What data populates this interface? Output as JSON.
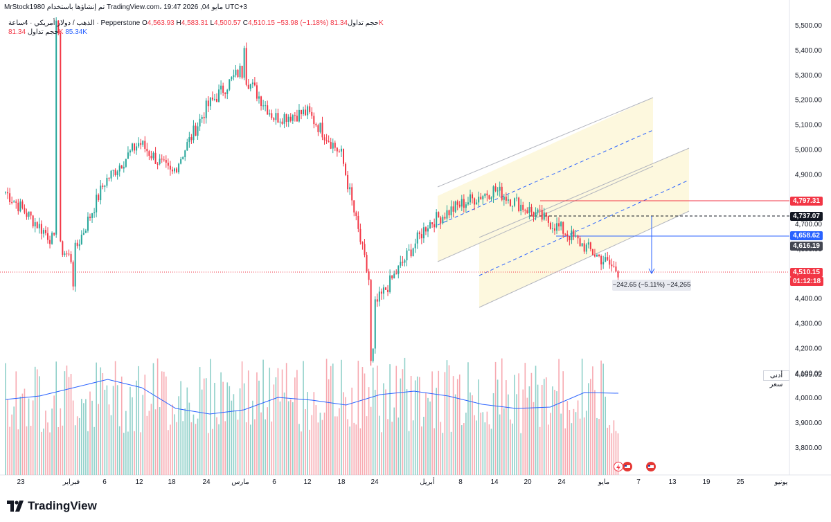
{
  "header": {
    "text": "MrStock1980 تم إنشاؤها باستخدام TradingView.com، 19:47 2026 ,04 مايو UTC+3"
  },
  "legend": {
    "instrument": "الذهب / دولار أمريكي · 4ساعة · Pepperstone",
    "open_label": "O",
    "open": "4,563.93",
    "high_label": "H",
    "high": "4,583.31",
    "low_label": "L",
    "low": "4,500.57",
    "close_label": "C",
    "close": "4,510.15",
    "change": "−53.98 (−1.18%)",
    "volume_label": "حجم تداول",
    "volume": "81.34K",
    "volume2_label": "حجم تداول",
    "volume2_a": "81.34K",
    "volume2_b": "85.34K"
  },
  "y_axis_ticks": [
    "5,500.00",
    "5,400.00",
    "5,300.00",
    "5,200.00",
    "5,100.00",
    "5,000.00",
    "4,900.00",
    "4,800.00",
    "4,700.00",
    "4,600.00",
    "4,500.00",
    "4,400.00",
    "4,300.00",
    "4,200.00",
    "4,100.00",
    "4,000.00",
    "3,900.00",
    "3,800.00"
  ],
  "x_axis_ticks": [
    "23",
    "فبراير",
    "6",
    "12",
    "18",
    "24",
    "مارس",
    "6",
    "12",
    "18",
    "24",
    "أبريل",
    "8",
    "14",
    "20",
    "24",
    "مايو",
    "7",
    "13",
    "19",
    "25",
    "يونيو"
  ],
  "price_tags": {
    "red_level": "4,797.31",
    "black_level": "4,737.07",
    "blue_level": "4,658.62",
    "dark_level": "4,616.19",
    "current_price": "4,510.15",
    "countdown": "01:12:18"
  },
  "min_price": {
    "label": "أدنى سعر",
    "value": "4,099.02"
  },
  "measure": {
    "text": "−242.65 (−5.11%) −24,265"
  },
  "footer": {
    "brand": "TradingView"
  },
  "colors": {
    "up": "#26a69a",
    "down": "#f23645",
    "blue": "#2962ff",
    "channel_fill": "#fdf8de",
    "volume_ma": "#2962ff"
  },
  "chart_data": {
    "type": "candlestick",
    "symbol": "الذهب / دولار أمريكي",
    "timeframe": "4ساعة",
    "ylim": [
      3740,
      5530
    ],
    "close_series": [
      {
        "x": "23",
        "y": 4830
      },
      {
        "x": "فبراير",
        "y": 4560
      },
      {
        "x": "6",
        "y": 4870
      },
      {
        "x": "12",
        "y": 5030
      },
      {
        "x": "18",
        "y": 4900
      },
      {
        "x": "24",
        "y": 5170
      },
      {
        "x": "مارس",
        "y": 5320
      },
      {
        "x": "6",
        "y": 5130
      },
      {
        "x": "12",
        "y": 5150
      },
      {
        "x": "18",
        "y": 4980
      },
      {
        "x": "24",
        "y": 4370
      },
      {
        "x": "أبريل",
        "y": 4700
      },
      {
        "x": "8",
        "y": 4780
      },
      {
        "x": "14",
        "y": 4840
      },
      {
        "x": "20",
        "y": 4760
      },
      {
        "x": "24",
        "y": 4680
      },
      {
        "x": "مايو",
        "y": 4510
      }
    ],
    "horizontal_levels": [
      4797.31,
      4737.07,
      4658.62,
      4616.19,
      4510.15
    ],
    "lowest_price": 4099.02
  }
}
